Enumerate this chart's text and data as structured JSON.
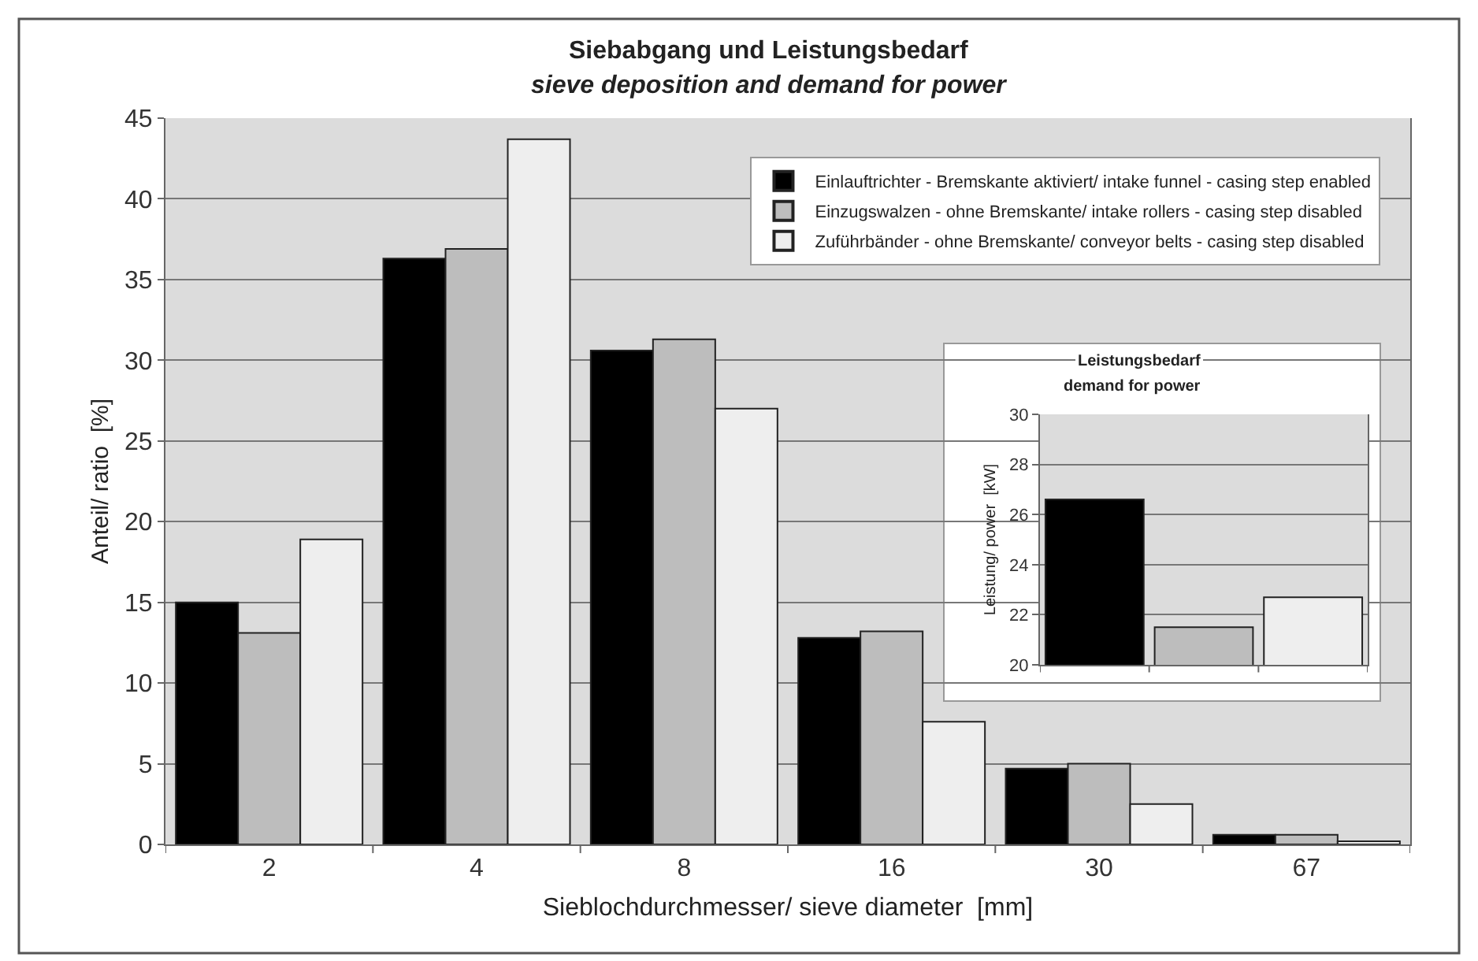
{
  "chart_data": [
    {
      "type": "bar",
      "title": "Siebabgang und Leistungsbedarf",
      "subtitle": "sieve deposition and demand for power",
      "xlabel": "Sieblochdurchmesser/ sieve diameter  [mm]",
      "ylabel": "Anteil/ ratio  [%]",
      "categories": [
        "2",
        "4",
        "8",
        "16",
        "30",
        "67"
      ],
      "series": [
        {
          "name": "Einlauftrichter - Bremskante aktiviert/ intake funnel - casing step enabled",
          "color": "#000000",
          "values": [
            15.0,
            36.3,
            30.6,
            12.8,
            4.7,
            0.6
          ]
        },
        {
          "name": "Einzugswalzen - ohne Bremskante/ intake rollers - casing step disabled",
          "color": "#bdbdbd",
          "values": [
            13.1,
            36.9,
            31.3,
            13.2,
            5.0,
            0.6
          ]
        },
        {
          "name": "Zuführbänder - ohne Bremskante/ conveyor belts - casing step disabled",
          "color": "#eeeeee",
          "values": [
            18.9,
            43.7,
            27.0,
            7.6,
            2.5,
            0.2
          ]
        }
      ],
      "ylim": [
        0,
        45
      ],
      "yticks": [
        0,
        5,
        10,
        15,
        20,
        25,
        30,
        35,
        40,
        45
      ],
      "grid": "y",
      "legend": "top right"
    },
    {
      "type": "bar",
      "title": "Leistungsbedarf",
      "subtitle": "demand for power",
      "ylabel": "Leistung/ power  [kW]",
      "categories": [
        null,
        null,
        null
      ],
      "values": [
        26.6,
        21.5,
        22.7
      ],
      "colors": [
        "#000000",
        "#bdbdbd",
        "#eeeeee"
      ],
      "ylim": [
        20,
        30
      ],
      "yticks": [
        20,
        22,
        24,
        26,
        28,
        30
      ],
      "grid": "y",
      "tick_labels": "y"
    }
  ]
}
